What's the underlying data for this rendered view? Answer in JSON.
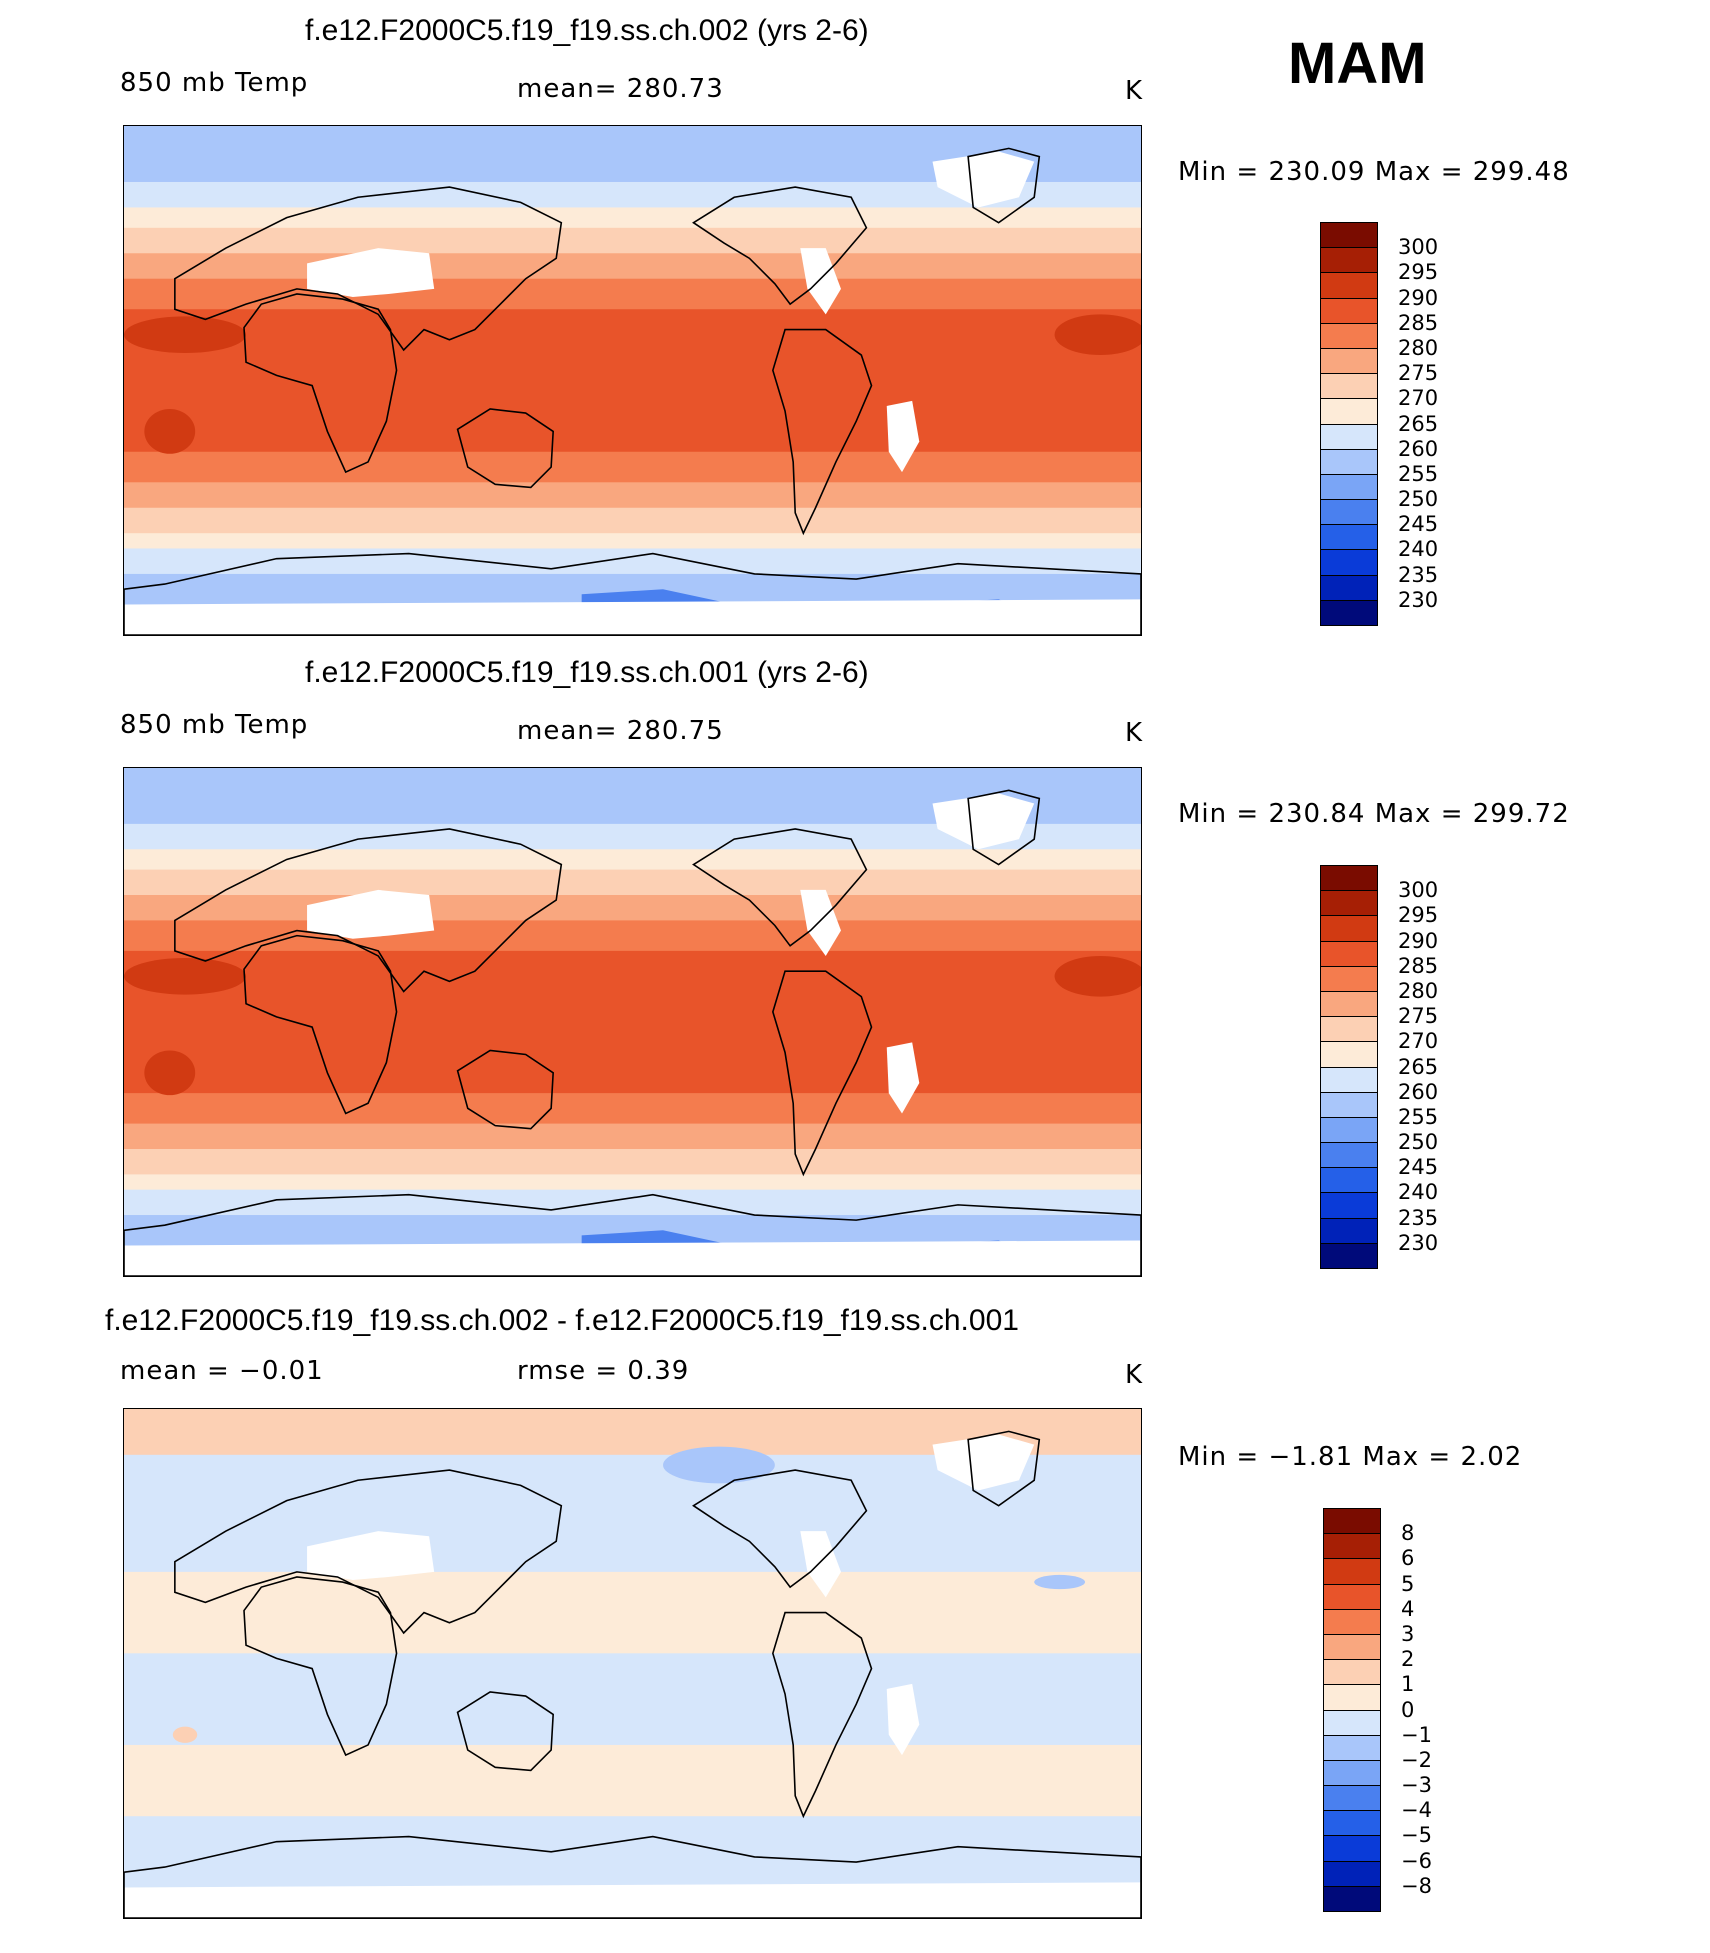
{
  "season": "MAM",
  "palette": {
    "temp": [
      "#000a7a",
      "#0022b8",
      "#0a3bd8",
      "#2560e8",
      "#4a80ef",
      "#7aa5f6",
      "#a9c6fa",
      "#d6e6fb",
      "#fdebd8",
      "#fcd0b4",
      "#f9a77f",
      "#f47c4e",
      "#e8542a",
      "#d13a12",
      "#a61f05",
      "#7a0c00"
    ],
    "diff": [
      "#000a7a",
      "#0022b8",
      "#0a3bd8",
      "#2560e8",
      "#4a80ef",
      "#7aa5f6",
      "#a9c6fa",
      "#d6e6fb",
      "#fdebd8",
      "#fcd0b4",
      "#f9a77f",
      "#f47c4e",
      "#e8542a",
      "#d13a12",
      "#a61f05",
      "#7a0c00"
    ]
  },
  "panels": [
    {
      "title": "f.e12.F2000C5.f19_f19.ss.ch.002 (yrs 2-6)",
      "left_label": "850 mb Temp",
      "center_label": "mean=  280.73",
      "units": "K",
      "minmax": "Min  =  230.09  Max  =  299.48",
      "colorbar_labels": [
        "300",
        "295",
        "290",
        "285",
        "280",
        "275",
        "270",
        "265",
        "260",
        "255",
        "250",
        "245",
        "240",
        "235",
        "230"
      ],
      "field": "temp"
    },
    {
      "title": "f.e12.F2000C5.f19_f19.ss.ch.001 (yrs 2-6)",
      "left_label": "850 mb Temp",
      "center_label": "mean=  280.75",
      "units": "K",
      "minmax": "Min  =  230.84  Max  =  299.72",
      "colorbar_labels": [
        "300",
        "295",
        "290",
        "285",
        "280",
        "275",
        "270",
        "265",
        "260",
        "255",
        "250",
        "245",
        "240",
        "235",
        "230"
      ],
      "field": "temp"
    },
    {
      "title": "f.e12.F2000C5.f19_f19.ss.ch.002 - f.e12.F2000C5.f19_f19.ss.ch.001",
      "left_label": "mean  =    −0.01",
      "center_label": "rmse  =      0.39",
      "units": "K",
      "minmax": "Min  =    −1.81  Max  =       2.02",
      "colorbar_labels": [
        "8",
        "6",
        "5",
        "4",
        "3",
        "2",
        "1",
        "0",
        "−1",
        "−2",
        "−3",
        "−4",
        "−5",
        "−6",
        "−8"
      ],
      "field": "diff"
    }
  ]
}
